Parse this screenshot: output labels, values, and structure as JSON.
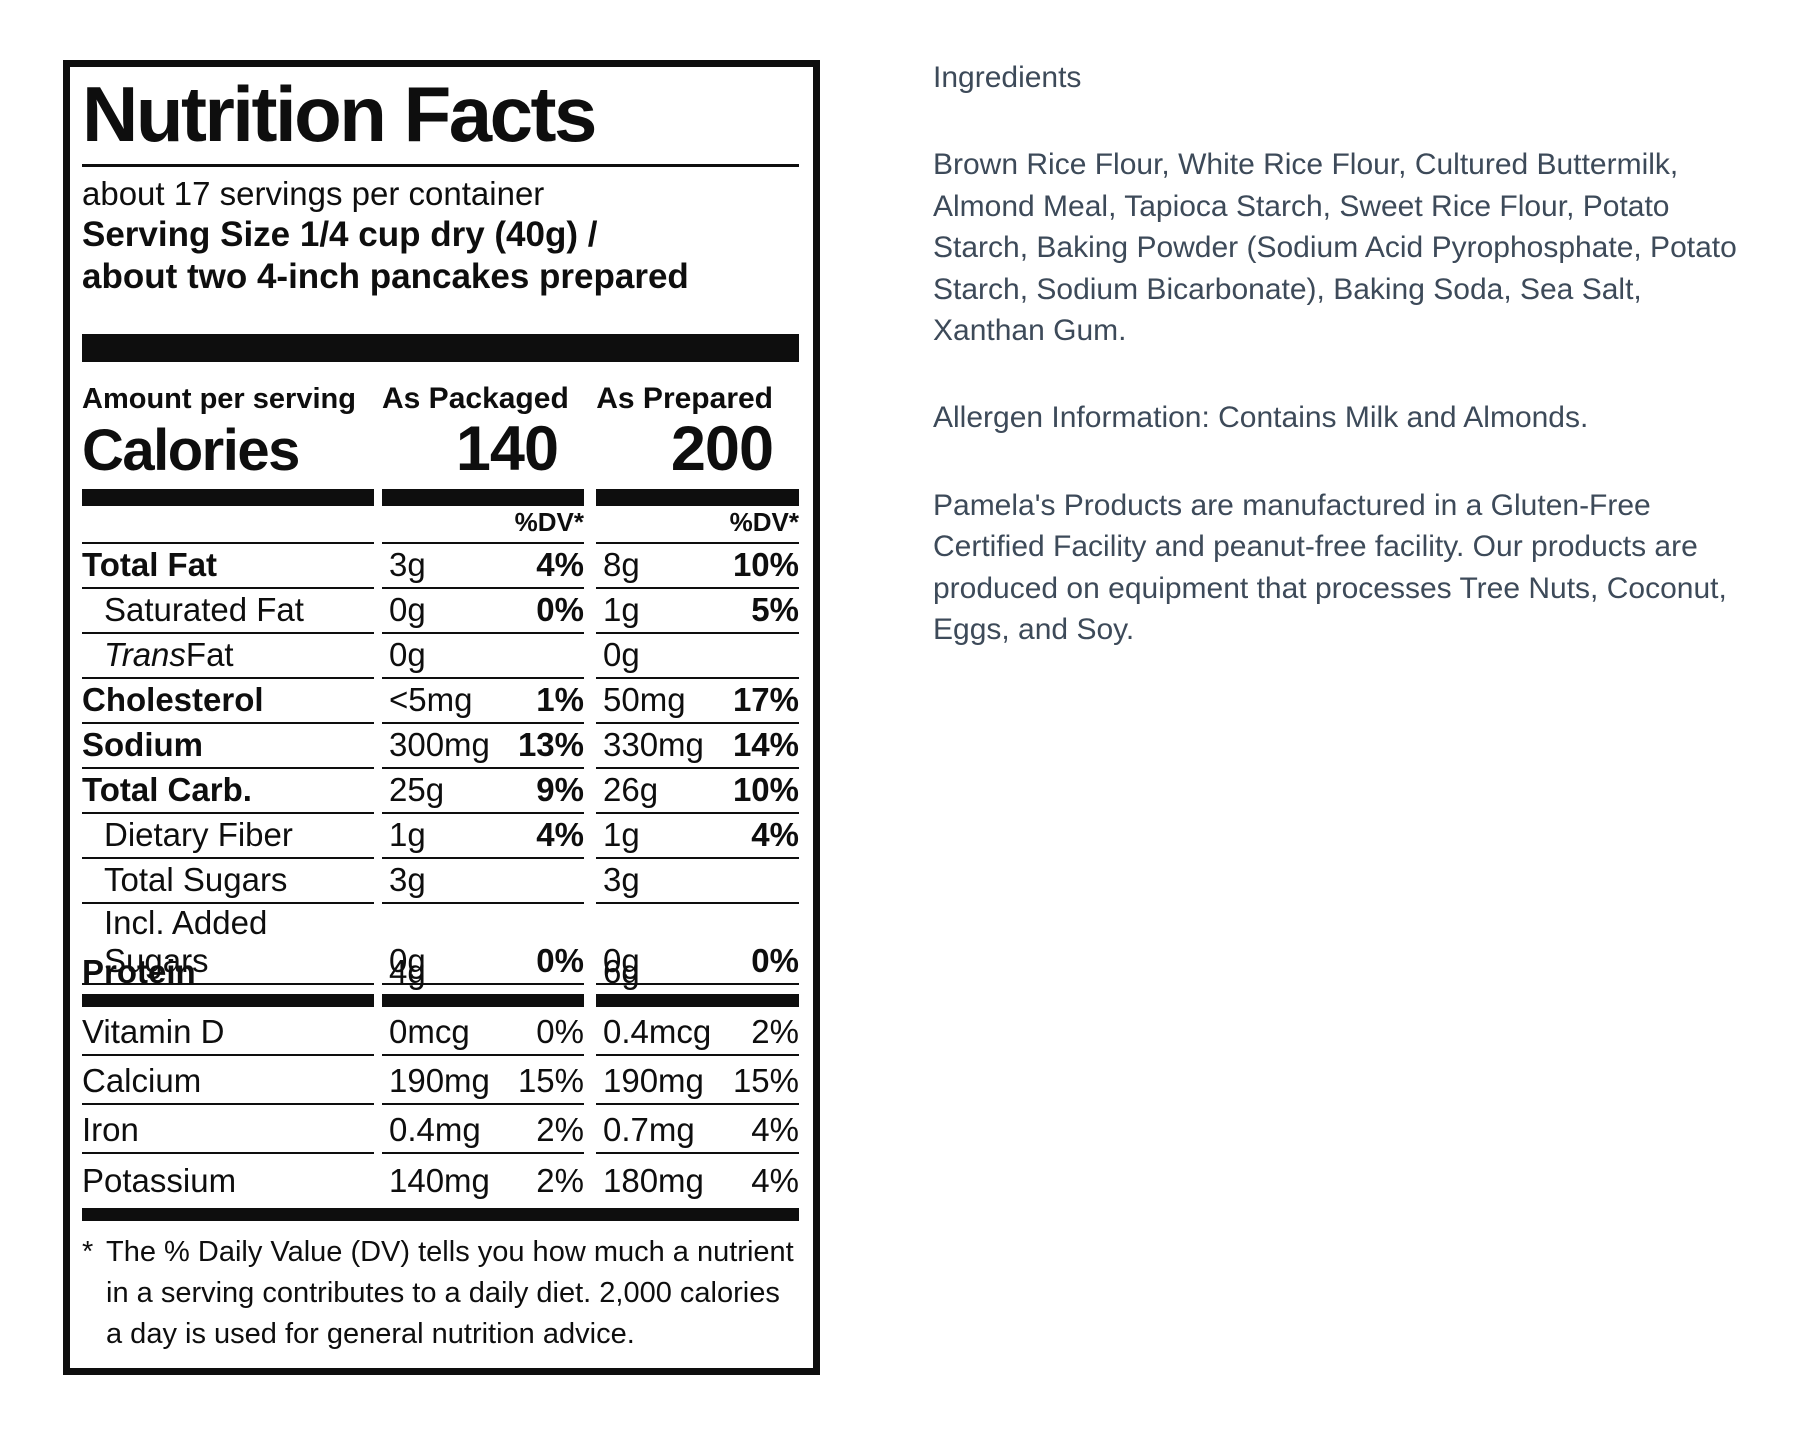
{
  "colors": {
    "background": "#ffffff",
    "label_ink": "#0e0e0e",
    "info_text": "#3d4a59"
  },
  "label": {
    "title": "Nutrition Facts",
    "servings_line": "about 17 servings per container",
    "serving_size_line1": "Serving Size 1/4 cup dry (40g) /",
    "serving_size_line2": "about two 4-inch pancakes prepared",
    "amount_per_serving": "Amount per serving",
    "col_packaged": "As Packaged",
    "col_prepared": "As Prepared",
    "calories_label": "Calories",
    "calories_packaged": "140",
    "calories_prepared": "200",
    "dv_header": "%DV*",
    "rows": [
      {
        "name": "Total Fat",
        "style": "bold",
        "pkg_amt": "3g",
        "pkg_dv": "4%",
        "prep_amt": "8g",
        "prep_dv": "10%"
      },
      {
        "name": "Saturated Fat",
        "style": "indent",
        "pkg_amt": "0g",
        "pkg_dv": "0%",
        "prep_amt": "1g",
        "prep_dv": "5%"
      },
      {
        "name_italic": "Trans",
        "name": " Fat",
        "style": "indent",
        "pkg_amt": "0g",
        "pkg_dv": "",
        "prep_amt": "0g",
        "prep_dv": ""
      },
      {
        "name": "Cholesterol",
        "style": "bold",
        "pkg_amt": "<5mg",
        "pkg_dv": "1%",
        "prep_amt": "50mg",
        "prep_dv": "17%"
      },
      {
        "name": "Sodium",
        "style": "bold",
        "pkg_amt": "300mg",
        "pkg_dv": "13%",
        "prep_amt": "330mg",
        "prep_dv": "14%"
      },
      {
        "name": "Total Carb.",
        "style": "bold",
        "pkg_amt": "25g",
        "pkg_dv": "9%",
        "prep_amt": "26g",
        "prep_dv": "10%"
      },
      {
        "name": "Dietary Fiber",
        "style": "indent",
        "pkg_amt": "1g",
        "pkg_dv": "4%",
        "prep_amt": "1g",
        "prep_dv": "4%"
      },
      {
        "name": "Total Sugars",
        "style": "indent",
        "pkg_amt": "3g",
        "pkg_dv": "",
        "prep_amt": "3g",
        "prep_dv": ""
      },
      {
        "name": "Incl. Added Sugars",
        "style": "indent",
        "pkg_amt": "0g",
        "pkg_dv": "0%",
        "prep_amt": "0g",
        "prep_dv": "0%"
      },
      {
        "name": "Protein",
        "style": "bold",
        "pkg_amt": "4g",
        "pkg_dv": "",
        "prep_amt": "6g",
        "prep_dv": ""
      }
    ],
    "vitamins": [
      {
        "name": "Vitamin D",
        "pkg_amt": "0mcg",
        "pkg_dv": "0%",
        "prep_amt": "0.4mcg",
        "prep_dv": "2%"
      },
      {
        "name": "Calcium",
        "pkg_amt": "190mg",
        "pkg_dv": "15%",
        "prep_amt": "190mg",
        "prep_dv": "15%"
      },
      {
        "name": "Iron",
        "pkg_amt": "0.4mg",
        "pkg_dv": "2%",
        "prep_amt": "0.7mg",
        "prep_dv": "4%"
      },
      {
        "name": "Potassium",
        "pkg_amt": "140mg",
        "pkg_dv": "2%",
        "prep_amt": "180mg",
        "prep_dv": "4%"
      }
    ],
    "footnote_marker": "*",
    "footnote_text": "The % Daily Value (DV) tells you how much a nutrient in a serving contributes to a daily diet. 2,000 calories a day is used for general nutrition advice."
  },
  "info": {
    "heading": "Ingredients",
    "ingredients": "Brown Rice Flour, White Rice Flour, Cultured Buttermilk, Almond Meal, Tapioca Starch, Sweet Rice Flour, Potato Starch, Baking Powder (Sodium Acid Pyrophosphate, Potato Starch, Sodium Bicarbonate), Baking Soda, Sea Salt, Xanthan Gum.",
    "allergen": "Allergen Information: Contains Milk and Almonds.",
    "facility": "Pamela's Products are manufactured in a Gluten-Free Certified Facility and peanut-free facility. Our products are produced on equipment that processes Tree Nuts, Coconut, Eggs, and Soy."
  }
}
